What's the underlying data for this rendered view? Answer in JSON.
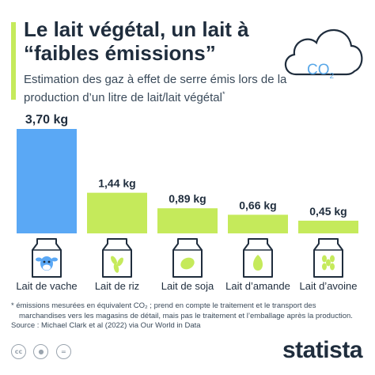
{
  "header": {
    "title": "Le lait végétal, un lait à “faibles émissions”",
    "subtitle": "Estimation des gaz à effet de serre émis lors de la production d’un litre de lait/lait végétal",
    "subtitle_mark": "*",
    "co2": "CO",
    "co2_sub": "2"
  },
  "chart_data": {
    "type": "bar",
    "categories": [
      "Lait de vache",
      "Lait de riz",
      "Lait de soja",
      "Lait d’amande",
      "Lait d’avoine"
    ],
    "values": [
      3.7,
      1.44,
      0.89,
      0.66,
      0.45
    ],
    "value_labels": [
      "3,70 kg",
      "1,44 kg",
      "0,89 kg",
      "0,66 kg",
      "0,45 kg"
    ],
    "icons": [
      "cow-icon",
      "rice-icon",
      "soy-icon",
      "almond-icon",
      "oat-icon"
    ],
    "colors": [
      "#5aa8f5",
      "#c5ea5b",
      "#c5ea5b",
      "#c5ea5b",
      "#c5ea5b"
    ],
    "ylim": [
      0,
      3.7
    ],
    "title": "",
    "xlabel": "",
    "ylabel": ""
  },
  "footnote": {
    "line1": "* émissions mesurées en équivalent CO₂ ; prend en compte le traitement et le transport des",
    "line2": "marchandises vers les magasins de détail, mais pas le traitement et l’emballage après la production.",
    "source": "Source : Michael Clark et al (2022) via Our World in Data"
  },
  "footer": {
    "brand": "statista",
    "license_icons": [
      "cc-icon",
      "attribution-icon",
      "no-derivatives-icon"
    ]
  },
  "colors": {
    "accent": "#c5ea5b",
    "highlight": "#5aa8f5",
    "text": "#1f2d3d"
  }
}
